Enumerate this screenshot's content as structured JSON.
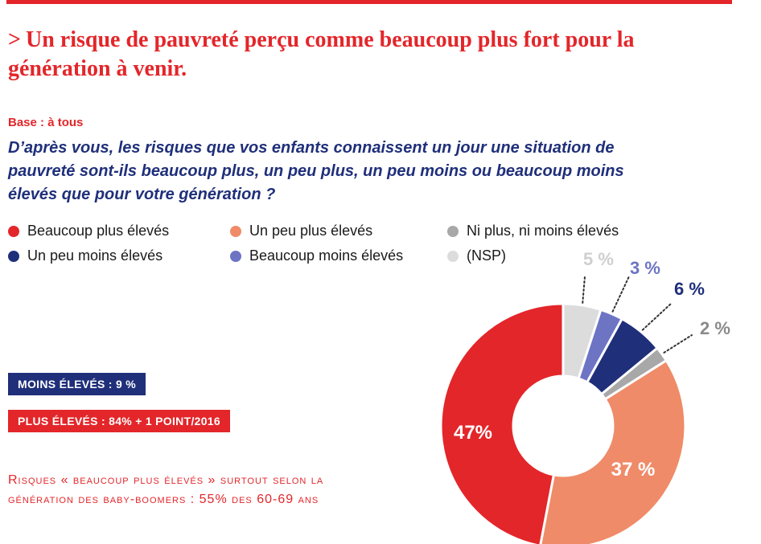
{
  "header": {
    "chevron": ">",
    "title": "Un risque de pauvreté perçu comme beaucoup plus fort pour la génération à venir."
  },
  "base_label": "Base : à tous",
  "question": "D’après vous, les risques que vos enfants connaissent un jour une situation de pauvreté sont-ils beaucoup plus, un peu plus, un peu moins ou beaucoup moins élevés que pour votre génération ?",
  "legend": [
    {
      "label": "Beaucoup plus élevés",
      "color": "#e3262a"
    },
    {
      "label": "Un peu plus élevés",
      "color": "#ef8b68"
    },
    {
      "label": "Ni plus, ni moins élevés",
      "color": "#a8a8a8"
    },
    {
      "label": "Un peu moins élevés",
      "color": "#1f2f7a"
    },
    {
      "label": "Beaucoup moins élevés",
      "color": "#6d74c4"
    },
    {
      "label": "(NSP)",
      "color": "#dcdcdc"
    }
  ],
  "tags": {
    "moins": "MOINS ÉLEVÉS : 9 %",
    "plus": "PLUS ÉLEVÉS : 84% + 1 POINT/2016"
  },
  "note": "Risques « beaucoup plus élevés » surtout selon la génération des baby-boomers : 55% des 60-69 ans",
  "chart_data": {
    "type": "pie",
    "subtype": "donut",
    "slices": [
      {
        "label": "(NSP)",
        "value": 5,
        "display": "5 %",
        "color": "#dcdcdc"
      },
      {
        "label": "Beaucoup moins élevés",
        "value": 3,
        "display": "3 %",
        "color": "#6d74c4"
      },
      {
        "label": "Un peu moins élevés",
        "value": 6,
        "display": "6 %",
        "color": "#1f2f7a"
      },
      {
        "label": "Ni plus, ni moins élevés",
        "value": 2,
        "display": "2 %",
        "color": "#a8a8a8"
      },
      {
        "label": "Un peu plus élevés",
        "value": 37,
        "display": "37 %",
        "color": "#ef8b68"
      },
      {
        "label": "Beaucoup plus élevés",
        "value": 47,
        "display": "47%",
        "color": "#e3262a"
      }
    ]
  }
}
